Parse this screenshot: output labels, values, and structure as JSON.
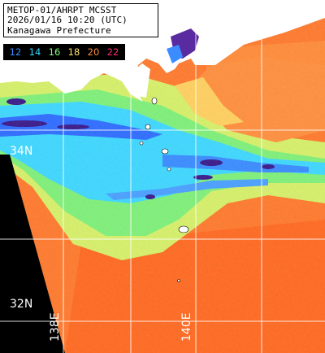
{
  "header": {
    "line1": "METOP-01/AHRPT MCSST",
    "line2": "2026/01/16 10:20 (UTC)",
    "line3": "Kanagawa Prefecture"
  },
  "legend": {
    "items": [
      {
        "label": "12",
        "color": "#3a8cff"
      },
      {
        "label": "14",
        "color": "#2fd6ff"
      },
      {
        "label": "16",
        "color": "#7dff7d"
      },
      {
        "label": "18",
        "color": "#ffe066"
      },
      {
        "label": "20",
        "color": "#ff8a3a"
      },
      {
        "label": "22",
        "color": "#ff2a6a"
      }
    ]
  },
  "grid": {
    "lat_labels": [
      "34N",
      "32N"
    ],
    "lon_labels": [
      "138E",
      "140E"
    ]
  },
  "colors": {
    "land": "#ffffff",
    "nodata": "#000000",
    "grid": "#ffffff"
  }
}
